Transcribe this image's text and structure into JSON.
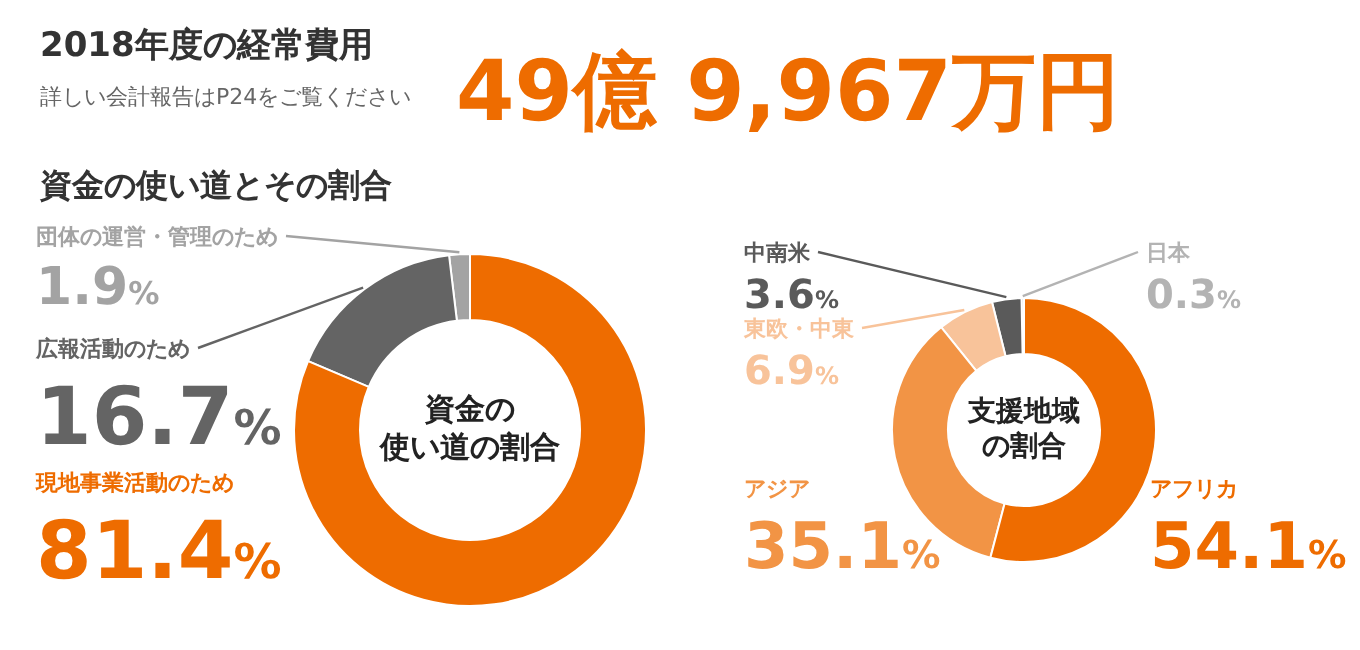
{
  "chart_data": [
    {
      "type": "other",
      "title": "2018年度の経常費用",
      "subtitle": "詳しい会計報告はP24をご覧ください",
      "annotations": [
        "49億 9,967万円"
      ]
    },
    {
      "type": "donut",
      "title": "資金の使い道とその割合",
      "annotations": [
        "資金の使い道の割合"
      ],
      "categories": [
        "団体の運営・管理のため",
        "広報活動のため",
        "現地事業活動のため"
      ],
      "values": [
        1.9,
        16.7,
        81.4
      ],
      "colors": [
        "#a3a3a3",
        "#646464",
        "#ee6c00"
      ],
      "value_labels": [
        "1.9%",
        "16.7%",
        "81.4%"
      ]
    },
    {
      "type": "donut",
      "annotations": [
        "支援地域の割合"
      ],
      "categories": [
        "日本",
        "中南米",
        "東欧・中東",
        "アジア",
        "アフリカ"
      ],
      "values": [
        0.3,
        3.6,
        6.9,
        35.1,
        54.1
      ],
      "colors": [
        "#b3b3b3",
        "#5a5a5a",
        "#f8c39a",
        "#f29445",
        "#ee6c00"
      ],
      "value_labels": [
        "0.3%",
        "3.6%",
        "6.9%",
        "35.1%",
        "54.1%"
      ]
    }
  ]
}
